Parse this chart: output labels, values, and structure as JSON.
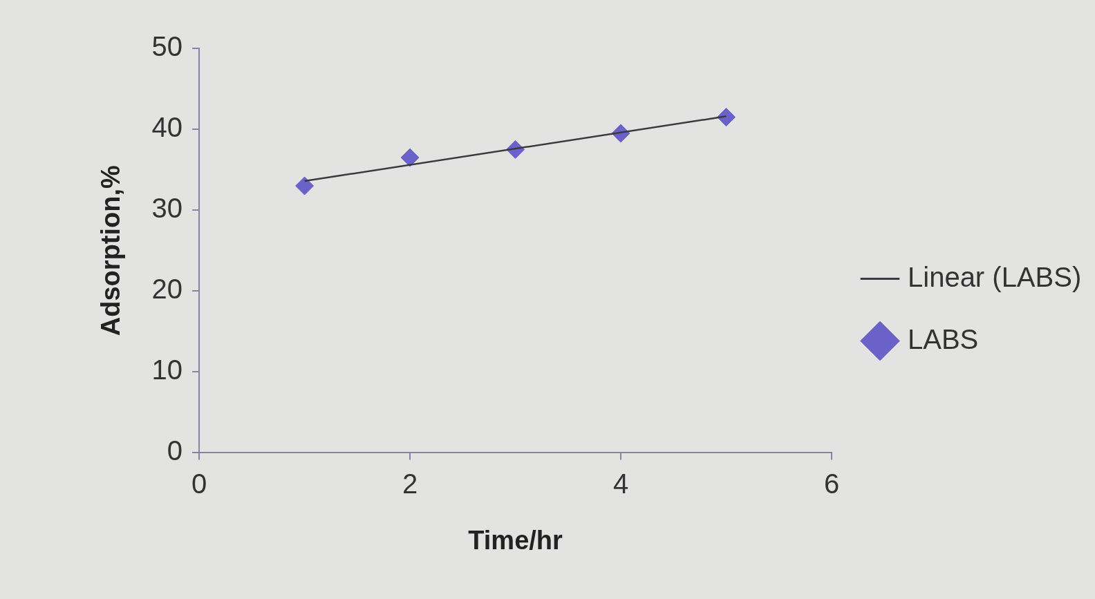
{
  "chart_data": {
    "type": "scatter",
    "xlabel": "Time/hr",
    "ylabel": "Adsorption,%",
    "xlim": [
      0,
      6
    ],
    "xticks": [
      0,
      2,
      4,
      6
    ],
    "ylim": [
      0,
      50
    ],
    "yticks": [
      0,
      10,
      20,
      30,
      40,
      50
    ],
    "grid": false,
    "legend": "right",
    "marker": "diamond",
    "series": [
      {
        "name": "LABS",
        "color": "#6a62c8",
        "x": [
          1,
          2,
          3,
          4,
          5
        ],
        "values": [
          33,
          36.5,
          37.5,
          39.5,
          41.5
        ]
      },
      {
        "name": "Linear (LABS)",
        "type": "line",
        "color": "#3a3a40",
        "marker": "none",
        "x": [
          1,
          5
        ],
        "values": [
          33.6,
          41.6
        ]
      }
    ]
  }
}
